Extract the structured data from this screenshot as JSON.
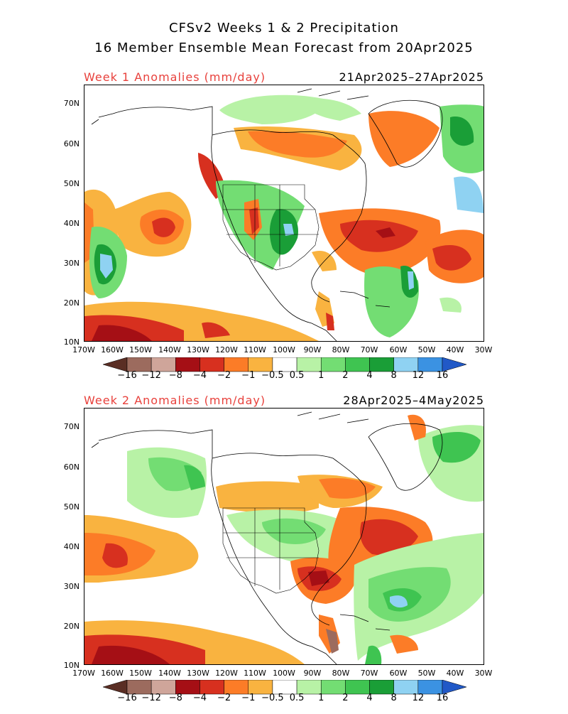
{
  "title_line1": "CFSv2 Weeks 1 & 2 Precipitation",
  "title_line2": "16 Member Ensemble Mean Forecast from 20Apr2025",
  "panels": [
    {
      "label": "Week 1 Anomalies (mm/day)",
      "dates": "21Apr2025–27Apr2025"
    },
    {
      "label": "Week 2 Anomalies (mm/day)",
      "dates": "28Apr2025–4May2025"
    }
  ],
  "lat_labels": [
    "70N",
    "60N",
    "50N",
    "40N",
    "30N",
    "20N",
    "10N"
  ],
  "lon_labels": [
    "170W",
    "160W",
    "150W",
    "140W",
    "130W",
    "120W",
    "110W",
    "100W",
    "90W",
    "80W",
    "70W",
    "60W",
    "50W",
    "40W",
    "30W"
  ],
  "colorbar": {
    "labels": [
      "−16",
      "−12",
      "−8",
      "−4",
      "−2",
      "−1",
      "−0.5",
      "0.5",
      "1",
      "2",
      "4",
      "8",
      "12",
      "16"
    ],
    "colors": [
      "#5a2e24",
      "#9c6b5e",
      "#cfa59a",
      "#a50f15",
      "#d7301f",
      "#fc7c27",
      "#f9b340",
      "#ffffff",
      "#b8f2a6",
      "#73dd73",
      "#3fc451",
      "#1a9e37",
      "#8fd2f2",
      "#3b92e2",
      "#2159c7"
    ]
  }
}
